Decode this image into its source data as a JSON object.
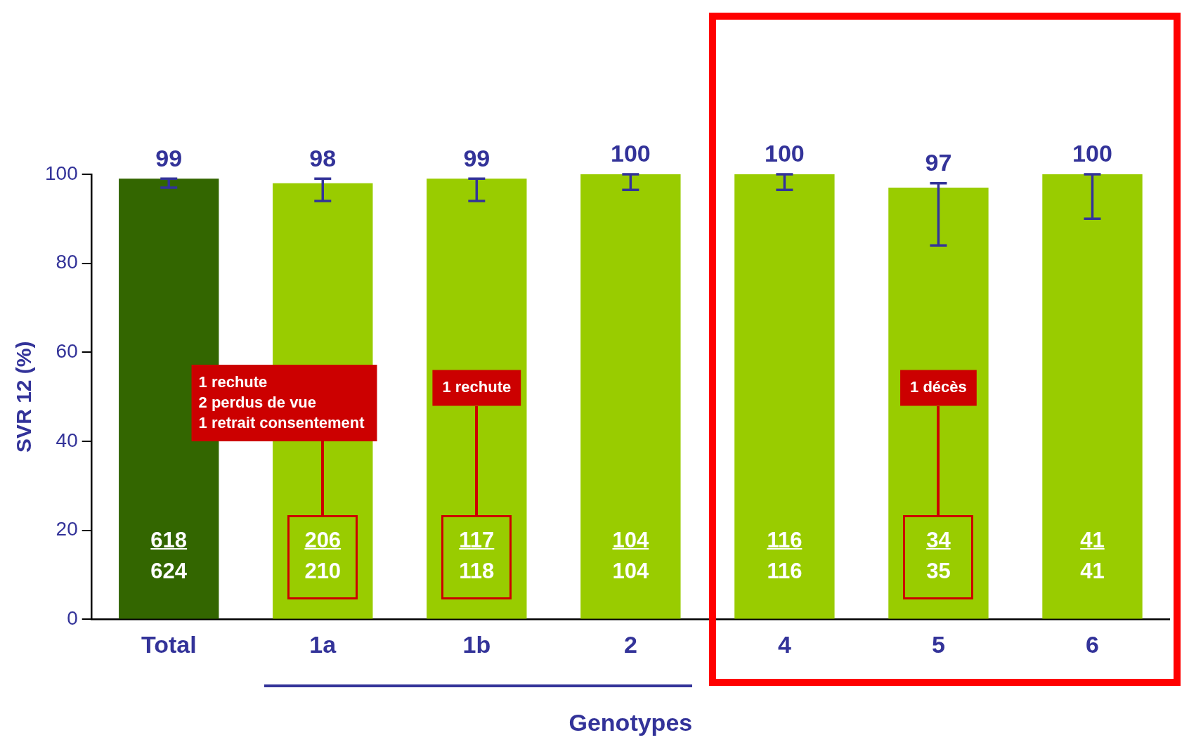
{
  "chart_data": {
    "type": "bar",
    "xlabel": "Genotypes",
    "ylabel": "SVR 12 (%)",
    "categories": [
      "Total",
      "1a",
      "1b",
      "2",
      "4",
      "5",
      "6"
    ],
    "values": [
      99,
      98,
      99,
      100,
      100,
      97,
      100
    ],
    "colors": [
      "#336600",
      "#99cc00",
      "#99cc00",
      "#99cc00",
      "#99cc00",
      "#99cc00",
      "#99cc00"
    ],
    "errors": [
      [
        97,
        99
      ],
      [
        94,
        99
      ],
      [
        94,
        99
      ],
      [
        96.5,
        100
      ],
      [
        96.5,
        100
      ],
      [
        84,
        98
      ],
      [
        90,
        100
      ]
    ],
    "ylim": [
      0,
      100
    ],
    "yticks": [
      0,
      20,
      40,
      60,
      80,
      100
    ],
    "grid": false,
    "legend": false,
    "data_labels": true,
    "annotations": [
      "618\n624",
      "206\n210",
      "117\n118",
      "104\n104",
      "116\n116",
      "34\n35",
      "41\n41",
      "1 rechute\n2 perdus de vue\n1 retrait consentement",
      "1 rechute",
      "1 décès"
    ]
  }
}
